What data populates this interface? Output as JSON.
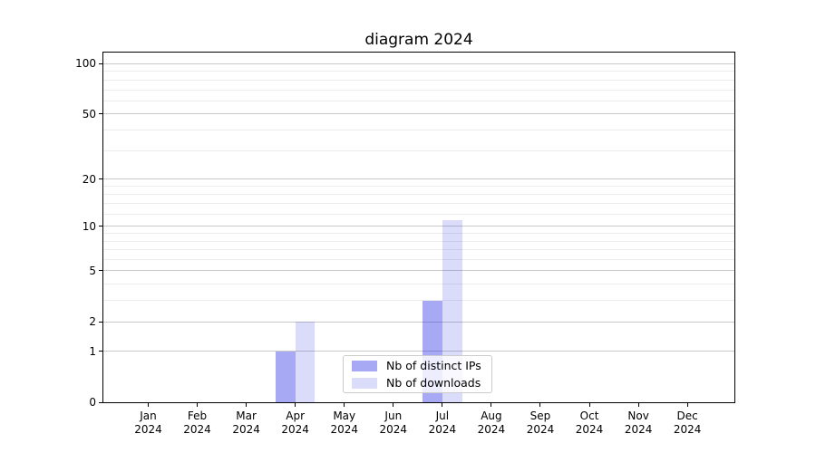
{
  "title": "diagram 2024",
  "colors": {
    "ips_fill": "rgba(11,16,227,0.36)",
    "ips_solid": "#a7a9f5",
    "downloads_fill": "rgba(8,22,222,0.15)",
    "downloads_solid": "#dadcfa",
    "grid_major": "#c9c9c9",
    "grid_minor": "#ececec",
    "axis": "#000000",
    "legend_border": "#cccccc"
  },
  "legend": {
    "items": [
      {
        "label": "Nb of distinct IPs",
        "color_key": "ips"
      },
      {
        "label": "Nb of downloads",
        "color_key": "downloads"
      }
    ]
  },
  "chart_data": {
    "type": "bar",
    "title": "diagram 2024",
    "y_scale": "log2(1+value)",
    "grid": "on",
    "legend_position": "lower center",
    "categories": [
      "Jan 2024",
      "Feb 2024",
      "Mar 2024",
      "Apr 2024",
      "May 2024",
      "Jun 2024",
      "Jul 2024",
      "Aug 2024",
      "Sep 2024",
      "Oct 2024",
      "Nov 2024",
      "Dec 2024"
    ],
    "x_tick_labels": [
      {
        "line1": "Jan",
        "line2": "2024"
      },
      {
        "line1": "Feb",
        "line2": "2024"
      },
      {
        "line1": "Mar",
        "line2": "2024"
      },
      {
        "line1": "Apr",
        "line2": "2024"
      },
      {
        "line1": "May",
        "line2": "2024"
      },
      {
        "line1": "Jun",
        "line2": "2024"
      },
      {
        "line1": "Jul",
        "line2": "2024"
      },
      {
        "line1": "Aug",
        "line2": "2024"
      },
      {
        "line1": "Sep",
        "line2": "2024"
      },
      {
        "line1": "Oct",
        "line2": "2024"
      },
      {
        "line1": "Nov",
        "line2": "2024"
      },
      {
        "line1": "Dec",
        "line2": "2024"
      }
    ],
    "series": [
      {
        "name": "Nb of distinct IPs",
        "key": "ips",
        "values": [
          0,
          0,
          0,
          1,
          0,
          0,
          3,
          0,
          0,
          0,
          0,
          0
        ]
      },
      {
        "name": "Nb of downloads",
        "key": "downloads",
        "values": [
          0,
          0,
          0,
          2,
          0,
          0,
          11,
          0,
          0,
          0,
          0,
          0
        ]
      }
    ],
    "y_axis": {
      "major_ticks": [
        100,
        50,
        20,
        10,
        5,
        2,
        1,
        0
      ],
      "minor_gridlines": [
        3,
        4,
        6,
        7,
        8,
        9,
        12,
        14,
        16,
        18,
        30,
        40,
        60,
        70,
        80,
        90
      ],
      "ylim": [
        0,
        118
      ]
    }
  }
}
